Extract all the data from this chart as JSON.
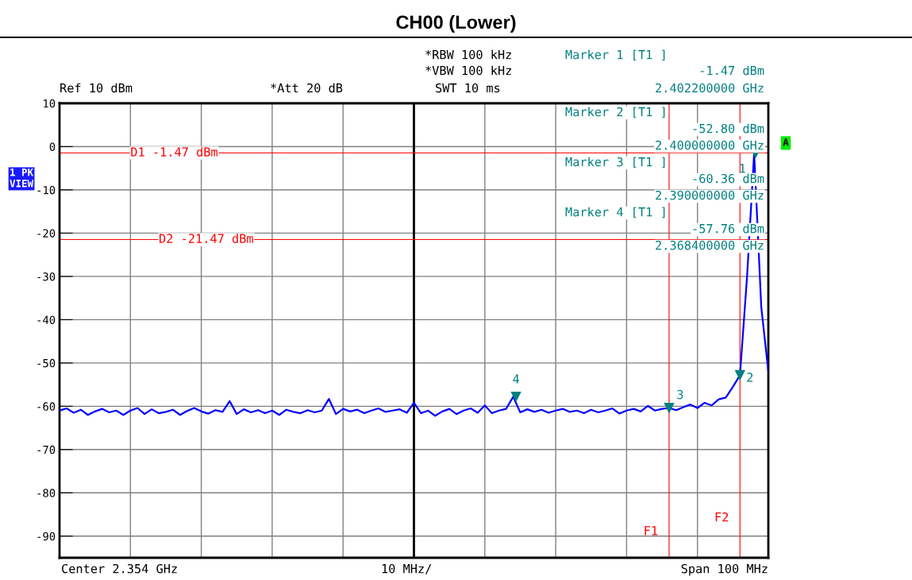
{
  "chart_data": {
    "type": "line",
    "title": "CH00 (Lower)",
    "categories": [
      null,
      null,
      null,
      null,
      null,
      null,
      null,
      null,
      null,
      null,
      null,
      null,
      null,
      null,
      null,
      null,
      null,
      null,
      null,
      null,
      null,
      null,
      null,
      null,
      null,
      null,
      null,
      null,
      null,
      null,
      null,
      null,
      null,
      null,
      null,
      null,
      null,
      null,
      null,
      null,
      null,
      null,
      null,
      null,
      null,
      null,
      null,
      null,
      null,
      null,
      null,
      null,
      null,
      null,
      null,
      null,
      null,
      null,
      null,
      null,
      null,
      null,
      null,
      null,
      null,
      null,
      null,
      null,
      null,
      null,
      null,
      null,
      null,
      null,
      null,
      null,
      null,
      null,
      null,
      null,
      null,
      null,
      null,
      null,
      null,
      null,
      null,
      null,
      null,
      null,
      null,
      null,
      null,
      null,
      null,
      null,
      null,
      null,
      null,
      null,
      null
    ],
    "ylim": [
      -95,
      10
    ],
    "yticks": [
      10,
      0,
      -10,
      -20,
      -30,
      -40,
      -50,
      -60,
      -70,
      -80,
      -90
    ],
    "grid": true,
    "marker": "none",
    "line_style": "solid",
    "tick_labels": "y",
    "series": [
      {
        "color": "#0000ff",
        "values": [
          -61.0,
          -60.5,
          -61.5,
          -60.8,
          -62.0,
          -61.2,
          -60.6,
          -61.4,
          -61.0,
          -62.0,
          -61.0,
          -60.4,
          -61.8,
          -60.7,
          -61.6,
          -61.3,
          -60.8,
          -62.0,
          -61.1,
          -60.4,
          -61.2,
          -61.7,
          -60.9,
          -61.3,
          -58.8,
          -61.8,
          -60.7,
          -61.4,
          -60.9,
          -61.6,
          -61.0,
          -62.0,
          -60.8,
          -61.3,
          -61.6,
          -60.9,
          -61.4,
          -61.0,
          -58.3,
          -61.8,
          -60.6,
          -61.2,
          -60.8,
          -61.6,
          -61.0,
          -60.5,
          -61.3,
          -61.0,
          -60.7,
          -61.5,
          -59.2,
          -61.6,
          -61.0,
          -62.2,
          -61.2,
          -60.6,
          -61.8,
          -61.0,
          -60.5,
          -61.5,
          -59.8,
          -61.6,
          -61.0,
          -60.6,
          -57.8,
          -61.4,
          -60.7,
          -61.3,
          -60.8,
          -61.5,
          -61.0,
          -60.6,
          -61.3,
          -61.0,
          -61.6,
          -60.8,
          -61.4,
          -61.0,
          -60.5,
          -61.7,
          -61.0,
          -60.6,
          -61.2,
          -59.9,
          -61.0,
          -60.6,
          -60.4,
          -60.9,
          -60.2,
          -59.6,
          -60.4,
          -59.2,
          -59.8,
          -58.4,
          -58.0,
          -55.5,
          -52.8,
          -30.0,
          -1.5,
          -37.0,
          -52.0
        ]
      }
    ],
    "ref_lines": [
      {
        "axis": "y",
        "value": -1.47,
        "label": "D1 -1.47 dBm",
        "color": "#ff0000"
      },
      {
        "axis": "y",
        "value": -21.47,
        "label": "D2 -21.47 dBm",
        "color": "#ff0000"
      },
      {
        "axis": "x",
        "label": "F1",
        "color": "#ff0000"
      },
      {
        "axis": "x",
        "label": "F2",
        "color": "#ff0000"
      }
    ],
    "annotations": [
      {
        "text": "1",
        "y": -1.47
      },
      "2",
      {
        "text": "3",
        "y": -60.36
      },
      {
        "text": "4",
        "y": -57.76
      },
      "Ref 10 dBm",
      "*Att 20 dB",
      "*RBW 100 kHz",
      "*VBW 100 kHz",
      "SWT 10 ms",
      "Marker 1 [T1 ]",
      "-1.47 dBm",
      "2.402200000 GHz",
      "Marker 2 [T1 ]",
      "-52.80 dBm",
      "2.400000000 GHz",
      "Marker 3 [T1 ]",
      "-60.36 dBm",
      "2.390000000 GHz",
      "Marker 4 [T1 ]",
      "-57.76 dBm",
      "2.368400000 GHz",
      "1 PK VIEW",
      "A",
      "Center 2.354 GHz",
      "10 MHz/",
      "Span 100 MHz"
    ]
  }
}
